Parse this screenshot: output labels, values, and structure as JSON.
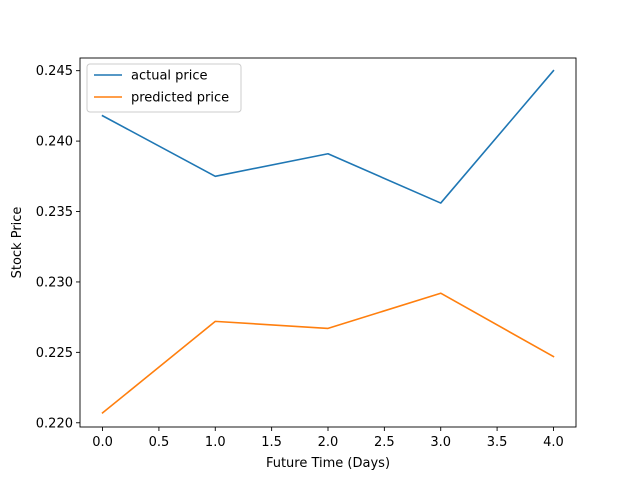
{
  "chart_data": {
    "type": "line",
    "xlabel": "Future Time (Days)",
    "ylabel": "Stock Price",
    "x": [
      0,
      1,
      2,
      3,
      4
    ],
    "xlim": [
      -0.2,
      4.2
    ],
    "ylim": [
      0.2197,
      0.2459
    ],
    "xticks": [
      0.0,
      0.5,
      1.0,
      1.5,
      2.0,
      2.5,
      3.0,
      3.5,
      4.0
    ],
    "xtick_labels": [
      "0.0",
      "0.5",
      "1.0",
      "1.5",
      "2.0",
      "2.5",
      "3.0",
      "3.5",
      "4.0"
    ],
    "yticks": [
      0.22,
      0.225,
      0.23,
      0.235,
      0.24,
      0.245
    ],
    "ytick_labels": [
      "0.220",
      "0.225",
      "0.230",
      "0.235",
      "0.240",
      "0.245"
    ],
    "grid": false,
    "legend_position": "top-left",
    "series": [
      {
        "name": "actual price",
        "color": "#1f77b4",
        "values": [
          0.2418,
          0.2375,
          0.2391,
          0.2356,
          0.245
        ]
      },
      {
        "name": "predicted price",
        "color": "#ff7f0e",
        "values": [
          0.2207,
          0.2272,
          0.2267,
          0.2292,
          0.2247
        ]
      }
    ]
  }
}
